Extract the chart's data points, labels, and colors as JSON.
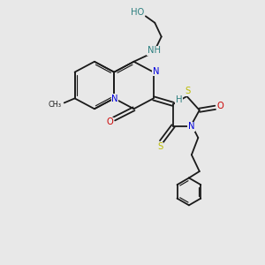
{
  "bg_color": "#e8e8e8",
  "bond_color": "#1a1a1a",
  "N_color": "#0000dd",
  "O_color": "#cc0000",
  "S_color": "#bbbb00",
  "H_color": "#2e8080",
  "figsize": [
    3.0,
    3.0
  ],
  "dpi": 100,
  "xlim": [
    0,
    10
  ],
  "ylim": [
    0,
    10
  ]
}
